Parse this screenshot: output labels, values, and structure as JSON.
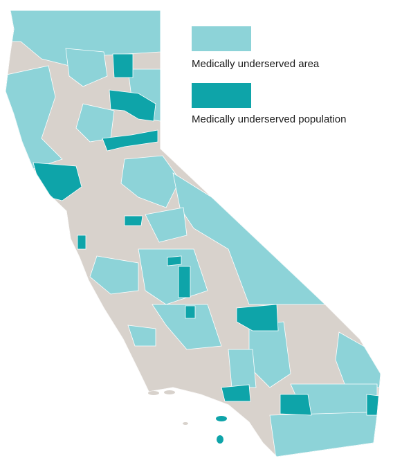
{
  "legend": {
    "items": [
      {
        "label": "Medically underserved area",
        "color": "#8dd3d8"
      },
      {
        "label": "Medically underserved population",
        "color": "#0ea4a9"
      }
    ]
  },
  "map": {
    "base_color": "#d8d2cc"
  }
}
